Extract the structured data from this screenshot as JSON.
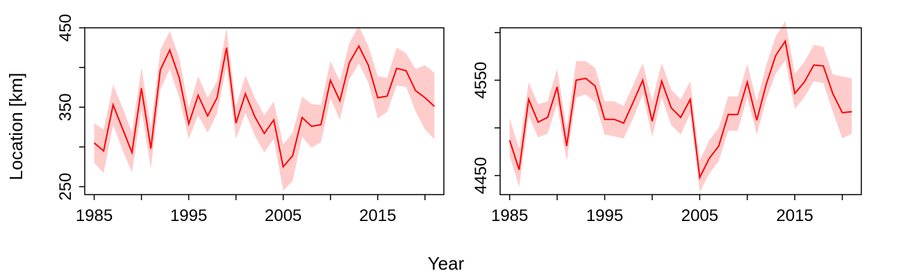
{
  "figure": {
    "shared_ylabel": "Location [km]",
    "shared_xlabel": "Year"
  },
  "chart_data": [
    {
      "type": "line",
      "xlim": [
        1984,
        2022
      ],
      "ylim": [
        240,
        450
      ],
      "xticks": [
        1985,
        1990,
        1995,
        2000,
        2005,
        2010,
        2015,
        2020
      ],
      "xtick_labels": [
        "1985",
        "",
        "1995",
        "",
        "2005",
        "",
        "2015",
        ""
      ],
      "yticks": [
        250,
        300,
        350,
        400,
        450
      ],
      "ytick_labels": [
        "250",
        "",
        "350",
        "",
        "450"
      ],
      "line_color": "#ff0000",
      "band_color": "#ffcccc",
      "series": [
        {
          "x": [
            1985,
            1986,
            1987,
            1988,
            1989,
            1990,
            1991,
            1992,
            1993,
            1994,
            1995,
            1996,
            1997,
            1998,
            1999,
            2000,
            2001,
            2002,
            2003,
            2004,
            2005,
            2006,
            2007,
            2008,
            2009,
            2010,
            2011,
            2012,
            2013,
            2014,
            2015,
            2016,
            2017,
            2018,
            2019,
            2020,
            2021
          ],
          "y": [
            305,
            295,
            353,
            323,
            293,
            374,
            298,
            397,
            422,
            387,
            329,
            365,
            339,
            362,
            425,
            330,
            367,
            338,
            317,
            334,
            275,
            289,
            337,
            326,
            328,
            384,
            358,
            406,
            427,
            403,
            362,
            364,
            399,
            396,
            371,
            362,
            351
          ],
          "lower": [
            280,
            267,
            328,
            296,
            268,
            347,
            273,
            372,
            398,
            362,
            310,
            340,
            318,
            342,
            401,
            310,
            343,
            314,
            293,
            310,
            245,
            257,
            313,
            299,
            306,
            361,
            334,
            385,
            405,
            381,
            336,
            344,
            377,
            376,
            345,
            322,
            310
          ],
          "upper": [
            330,
            322,
            378,
            350,
            318,
            400,
            323,
            422,
            446,
            412,
            349,
            389,
            362,
            383,
            450,
            351,
            390,
            362,
            340,
            357,
            303,
            318,
            363,
            354,
            353,
            408,
            383,
            431,
            452,
            427,
            389,
            387,
            425,
            418,
            398,
            403,
            393
          ]
        }
      ]
    },
    {
      "type": "line",
      "xlim": [
        1984,
        2022
      ],
      "ylim": [
        4430,
        4605
      ],
      "xticks": [
        1985,
        1990,
        1995,
        2000,
        2005,
        2010,
        2015,
        2020
      ],
      "xtick_labels": [
        "1985",
        "",
        "1995",
        "",
        "2005",
        "",
        "2015",
        ""
      ],
      "yticks": [
        4450,
        4500,
        4550,
        4600
      ],
      "ytick_labels": [
        "4450",
        "",
        "4550",
        ""
      ],
      "line_color": "#ff0000",
      "band_color": "#ffcccc",
      "series": [
        {
          "x": [
            1985,
            1986,
            1987,
            1988,
            1989,
            1990,
            1991,
            1992,
            1993,
            1994,
            1995,
            1996,
            1997,
            1998,
            1999,
            2000,
            2001,
            2002,
            2003,
            2004,
            2005,
            2006,
            2007,
            2008,
            2009,
            2010,
            2011,
            2012,
            2013,
            2014,
            2015,
            2016,
            2017,
            2018,
            2019,
            2020,
            2021
          ],
          "y": [
            4487,
            4456,
            4530,
            4506,
            4511,
            4543,
            4481,
            4550,
            4552,
            4544,
            4509,
            4509,
            4505,
            4527,
            4550,
            4507,
            4549,
            4521,
            4511,
            4530,
            4448,
            4468,
            4481,
            4514,
            4514,
            4548,
            4508,
            4546,
            4576,
            4591,
            4536,
            4548,
            4566,
            4565,
            4536,
            4516,
            4517
          ],
          "lower": [
            4470,
            4438,
            4513,
            4490,
            4494,
            4525,
            4465,
            4532,
            4535,
            4527,
            4493,
            4491,
            4489,
            4510,
            4535,
            4491,
            4532,
            4503,
            4493,
            4515,
            4433,
            4452,
            4465,
            4497,
            4497,
            4532,
            4493,
            4530,
            4557,
            4571,
            4520,
            4532,
            4549,
            4547,
            4517,
            4489,
            4494
          ],
          "upper": [
            4510,
            4478,
            4548,
            4525,
            4528,
            4562,
            4500,
            4570,
            4570,
            4563,
            4528,
            4528,
            4523,
            4545,
            4568,
            4528,
            4568,
            4540,
            4530,
            4549,
            4466,
            4487,
            4500,
            4533,
            4533,
            4567,
            4528,
            4566,
            4596,
            4612,
            4557,
            4569,
            4587,
            4585,
            4556,
            4554,
            4552
          ]
        }
      ]
    }
  ]
}
